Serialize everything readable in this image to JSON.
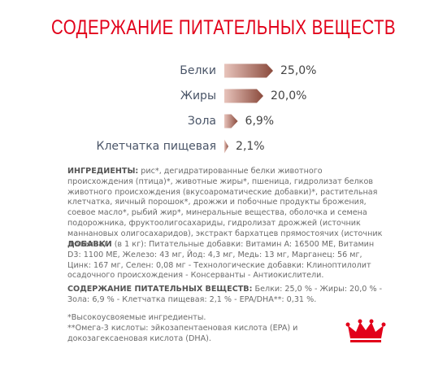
{
  "title": "СОДЕРЖАНИЕ ПИТАТЕЛЬНЫХ ВЕЩЕСТВ",
  "chart_data": {
    "type": "bar",
    "orientation": "horizontal",
    "categories": [
      "Белки",
      "Жиры",
      "Зола",
      "Клетчатка пищевая"
    ],
    "values": [
      25.0,
      20.0,
      6.9,
      2.1
    ],
    "value_labels": [
      "25,0%",
      "20,0%",
      "6,9%",
      "2,1%"
    ],
    "color": "#8a4a3c"
  },
  "sections": [
    {
      "heading": "ИНГРЕДИЕНТЫ:",
      "text": "рис*, дегидратированные белки животного происхождения (птица)*, животные жиры*, пшеница, гидролизат белков животного происхождения (вкусоароматические добавки)*, растительная клетчатка, яичный порошок*, дрожжи и побочные продукты брожения, соевое масло*, рыбий жир*, минеральные вещества, оболочка и семена подорожника, фруктоолигосахариды, гидролизат дрожжей (источник маннановых олигосахаридов), экстракт бархатцев прямостоячих (источник лютеина)."
    },
    {
      "heading": "ДОБАВКИ",
      "text": "(в 1 кг): Питательные добавки: Витамин A: 16500 МЕ, Витамин D3: 1100 МЕ, Железо: 43 мг, Йод: 4,3 мг, Медь: 13 мг, Марганец: 56 мг, Цинк: 167 мг, Селен: 0,08 мг - Технологические добавки: Клиноптилолит осадочного происхождения - Консерванты - Антиокислители."
    },
    {
      "heading": "СОДЕРЖАНИЕ ПИТАТЕЛЬНЫХ ВЕЩЕСТВ:",
      "text": "Белки: 25,0 % - Жиры: 20,0 % - Зола: 6,9 % - Клетчатка пищевая: 2,1 % - EPA/DHA**: 0,31 %."
    }
  ],
  "notes": [
    "*Высокоусвояемые ингредиенты.",
    "**Омега-3 кислоты: эйкозапентаеновая кислота (EPA) и докозагексаеновая кислота (DHA)."
  ]
}
